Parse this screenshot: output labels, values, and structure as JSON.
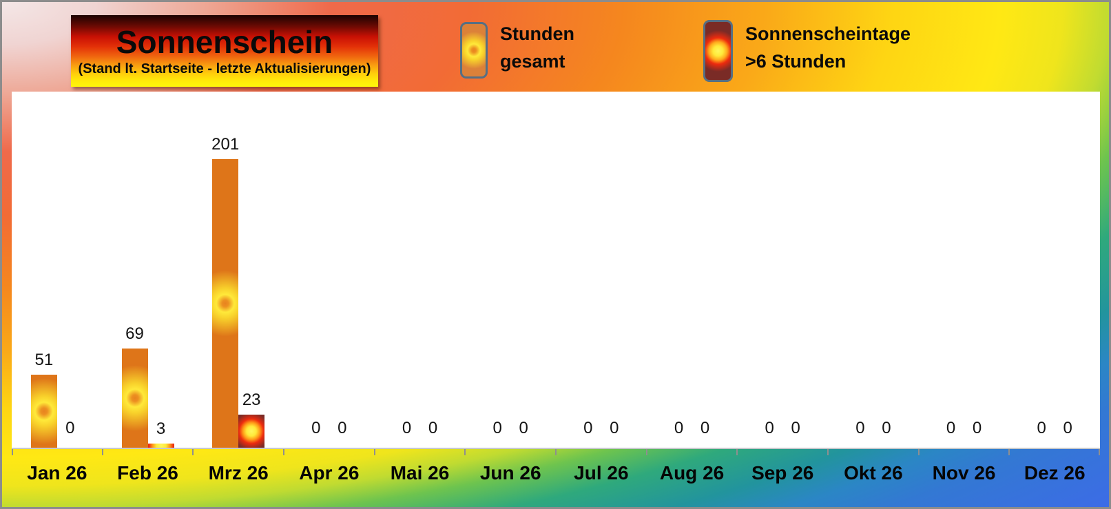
{
  "title": {
    "text": "Sonnenschein",
    "subtitle": "(Stand lt. Startseite - letzte Aktualisierungen)"
  },
  "legend": {
    "items": [
      {
        "line1": "Stunden",
        "line2": "gesamt"
      },
      {
        "line1": "Sonnenscheintage",
        "line2": ">6 Stunden"
      }
    ]
  },
  "chart_data": {
    "type": "bar",
    "categories": [
      "Jan 26",
      "Feb 26",
      "Mrz 26",
      "Apr 26",
      "Mai 26",
      "Jun 26",
      "Jul 26",
      "Aug 26",
      "Sep 26",
      "Okt 26",
      "Nov 26",
      "Dez 26"
    ],
    "series": [
      {
        "name": "Stunden gesamt",
        "color": "#DE7519",
        "values": [
          51,
          69,
          201,
          0,
          0,
          0,
          0,
          0,
          0,
          0,
          0,
          0
        ]
      },
      {
        "name": "Sonnenscheintage >6 Stunden",
        "color": "#7A2B26",
        "values": [
          0,
          3,
          23,
          0,
          0,
          0,
          0,
          0,
          0,
          0,
          0,
          0
        ]
      }
    ],
    "data_labels": true,
    "grid": false,
    "value_axis": {
      "visible": false,
      "min": 0,
      "implied_max": 248
    },
    "category_axis": {
      "tick_marks": true
    },
    "legend_position": "top",
    "plot_background": "#FFFFFF"
  },
  "colors": {
    "bar_stunden": "#DE7519",
    "bar_sonnenscheintage": "#7A2B26",
    "sun_yellow": "#FFE93A",
    "sun_red": "#ED2B0E",
    "swatch_border": "#566F83",
    "axis_line": "#C5C8CB",
    "tick": "#8F8F8F",
    "frame_border": "#8C8C8C"
  }
}
